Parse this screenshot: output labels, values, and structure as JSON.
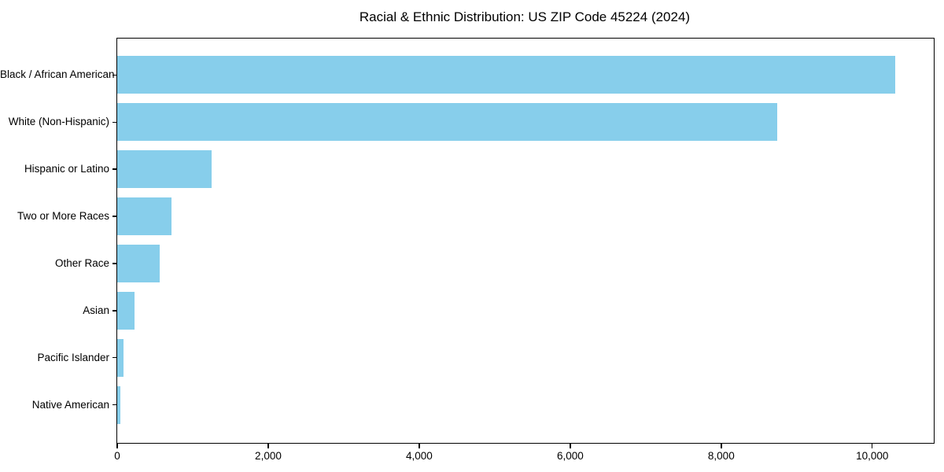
{
  "chart_data": {
    "type": "bar",
    "orientation": "horizontal",
    "title": "Racial & Ethnic Distribution: US ZIP Code 45224 (2024)",
    "categories": [
      "Black / African American",
      "White (Non-Hispanic)",
      "Hispanic or Latino",
      "Two or More Races",
      "Other Race",
      "Asian",
      "Pacific Islander",
      "Native American"
    ],
    "values": [
      10300,
      8740,
      1250,
      720,
      565,
      230,
      80,
      45
    ],
    "xlabel": "",
    "ylabel": "",
    "xlim": [
      0,
      10815
    ],
    "x_ticks": [
      0,
      2000,
      4000,
      6000,
      8000,
      10000
    ],
    "x_tick_labels": [
      "0",
      "2,000",
      "4,000",
      "6,000",
      "8,000",
      "10,000"
    ],
    "bar_color": "#87CEEB",
    "spine_color": "#000000",
    "text_color": "#000000",
    "bar_height_fraction": 0.8,
    "grid": false,
    "legend_position": "none"
  }
}
